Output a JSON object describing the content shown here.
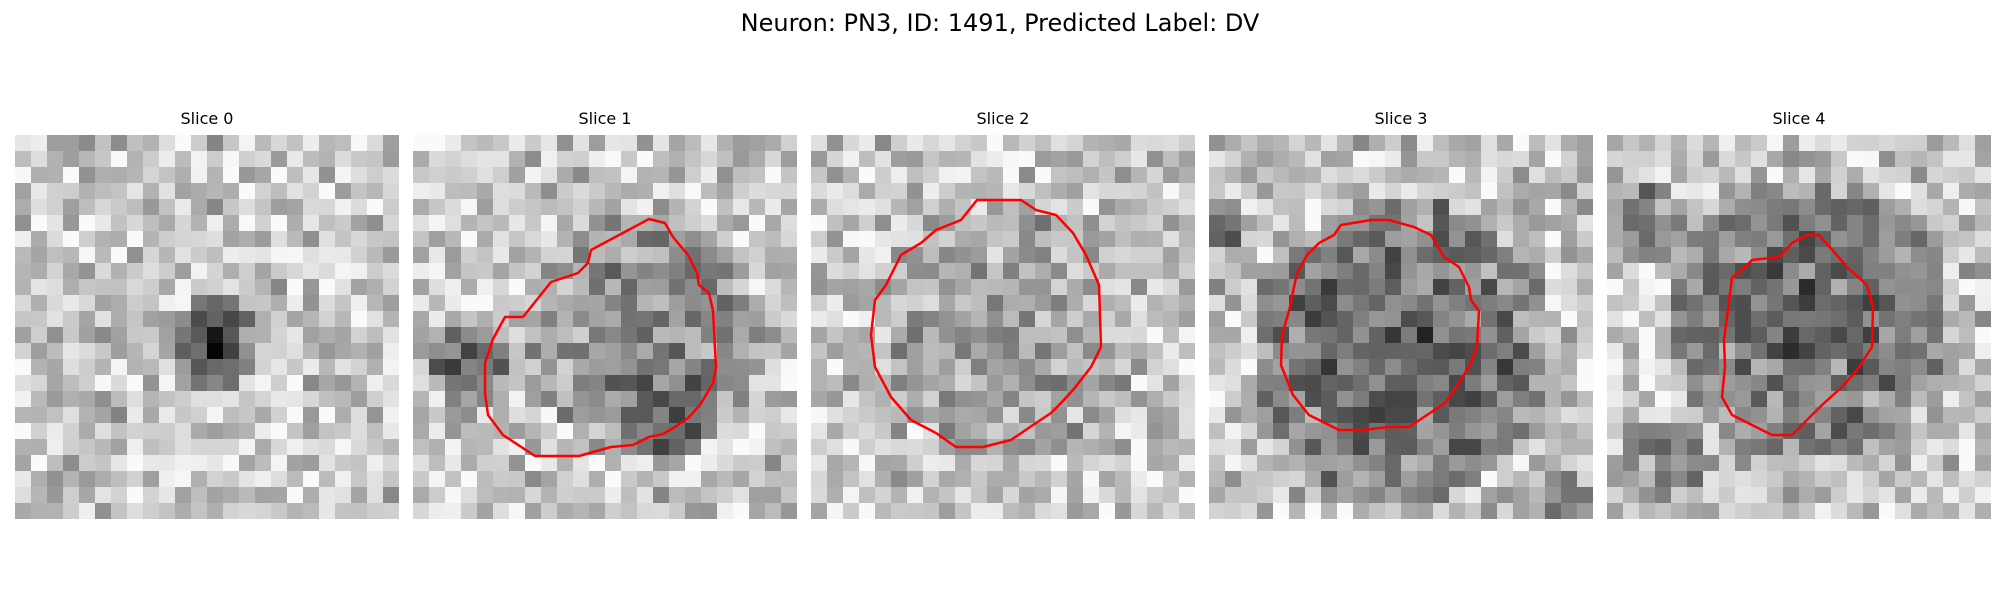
{
  "figure": {
    "title": "Neuron: PN3, ID: 1491, Predicted Label: DV",
    "contour_color": "#ff0000",
    "colormap": "grayscale",
    "panels": [
      {
        "title": "Slice 0",
        "has_contour": false
      },
      {
        "title": "Slice 1",
        "has_contour": true
      },
      {
        "title": "Slice 2",
        "has_contour": true
      },
      {
        "title": "Slice 3",
        "has_contour": true
      },
      {
        "title": "Slice 4",
        "has_contour": true
      }
    ]
  }
}
